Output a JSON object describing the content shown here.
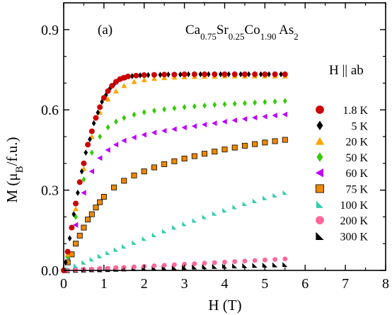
{
  "chart_data": {
    "type": "scatter",
    "panel_label": "(a)",
    "compound": {
      "parts": [
        {
          "t": "Ca",
          "sub": false
        },
        {
          "t": "0.75",
          "sub": true
        },
        {
          "t": "Sr",
          "sub": false
        },
        {
          "t": "0.25",
          "sub": true
        },
        {
          "t": "Co",
          "sub": false
        },
        {
          "t": "1.90",
          "sub": true
        },
        {
          "t": " As",
          "sub": false
        },
        {
          "t": "2",
          "sub": true
        }
      ]
    },
    "field_label": "H || ab",
    "xlabel": "H (T)",
    "ylabel_parts": [
      {
        "t": "M (μ",
        "sub": false
      },
      {
        "t": "B",
        "sub": true
      },
      {
        "t": "/f.u.)",
        "sub": false
      }
    ],
    "xlim": [
      0,
      8
    ],
    "ylim": [
      0,
      1.0
    ],
    "xticks": [
      "0",
      "1",
      "2",
      "3",
      "4",
      "5",
      "6",
      "7",
      "8"
    ],
    "yticks": [
      "0.0",
      "0.3",
      "0.6",
      "0.9"
    ],
    "grid": false,
    "legend_position": "right",
    "series": [
      {
        "name": "1.8 K",
        "marker": "circle",
        "color": "#cc0000",
        "x": [
          0.0,
          0.1,
          0.2,
          0.3,
          0.4,
          0.5,
          0.6,
          0.7,
          0.8,
          0.9,
          1.0,
          1.1,
          1.2,
          1.3,
          1.4,
          1.5,
          1.6,
          1.8,
          2.0,
          2.25,
          2.5,
          2.75,
          3.0,
          3.25,
          3.5,
          3.75,
          4.0,
          4.25,
          4.5,
          4.75,
          5.0,
          5.25,
          5.5
        ],
        "y": [
          0.0,
          0.07,
          0.16,
          0.25,
          0.33,
          0.4,
          0.47,
          0.52,
          0.57,
          0.61,
          0.645,
          0.67,
          0.69,
          0.705,
          0.715,
          0.72,
          0.725,
          0.728,
          0.73,
          0.731,
          0.732,
          0.732,
          0.733,
          0.733,
          0.733,
          0.733,
          0.733,
          0.733,
          0.733,
          0.733,
          0.733,
          0.733,
          0.733
        ]
      },
      {
        "name": "5 K",
        "marker": "diamond",
        "color": "#000000",
        "x": [
          0.05,
          0.15,
          0.25,
          0.35,
          0.45,
          0.55,
          0.65,
          0.75,
          0.85,
          0.95,
          1.05,
          1.15,
          1.25,
          1.35,
          1.45,
          1.55,
          1.7,
          1.9,
          2.1,
          2.4,
          2.6,
          2.9,
          3.1,
          3.4,
          3.6,
          3.9,
          4.1,
          4.4,
          4.6,
          4.9,
          5.1,
          5.4
        ],
        "y": [
          0.03,
          0.12,
          0.21,
          0.29,
          0.37,
          0.44,
          0.49,
          0.55,
          0.59,
          0.63,
          0.655,
          0.68,
          0.695,
          0.71,
          0.718,
          0.722,
          0.726,
          0.729,
          0.73,
          0.731,
          0.732,
          0.732,
          0.733,
          0.733,
          0.733,
          0.733,
          0.733,
          0.733,
          0.733,
          0.733,
          0.733,
          0.733
        ]
      },
      {
        "name": "20 K",
        "marker": "triangle-up",
        "color": "#ffa500",
        "x": [
          0.1,
          0.3,
          0.5,
          0.7,
          0.9,
          1.1,
          1.3,
          1.5,
          1.75,
          2.0,
          2.25,
          2.5,
          2.75,
          3.0,
          3.25,
          3.5,
          3.75,
          4.0,
          4.25,
          4.5,
          4.75,
          5.0,
          5.25,
          5.5
        ],
        "y": [
          0.06,
          0.23,
          0.38,
          0.5,
          0.59,
          0.64,
          0.67,
          0.69,
          0.705,
          0.712,
          0.717,
          0.72,
          0.722,
          0.723,
          0.724,
          0.725,
          0.725,
          0.726,
          0.726,
          0.726,
          0.726,
          0.726,
          0.726,
          0.726
        ]
      },
      {
        "name": "50 K",
        "marker": "diamond",
        "color": "#33cc00",
        "x": [
          0.1,
          0.3,
          0.5,
          0.7,
          0.9,
          1.1,
          1.3,
          1.5,
          1.75,
          2.0,
          2.25,
          2.5,
          2.75,
          3.0,
          3.25,
          3.5,
          3.75,
          4.0,
          4.25,
          4.5,
          4.75,
          5.0,
          5.25,
          5.5
        ],
        "y": [
          0.05,
          0.2,
          0.34,
          0.44,
          0.5,
          0.535,
          0.556,
          0.57,
          0.582,
          0.591,
          0.597,
          0.602,
          0.606,
          0.61,
          0.613,
          0.616,
          0.619,
          0.621,
          0.623,
          0.625,
          0.627,
          0.629,
          0.631,
          0.633
        ]
      },
      {
        "name": "60 K",
        "marker": "triangle-left",
        "color": "#bb00ff",
        "x": [
          0.1,
          0.3,
          0.5,
          0.7,
          0.9,
          1.1,
          1.3,
          1.5,
          1.75,
          2.0,
          2.25,
          2.5,
          2.75,
          3.0,
          3.25,
          3.5,
          3.75,
          4.0,
          4.25,
          4.5,
          4.75,
          5.0,
          5.25,
          5.5
        ],
        "y": [
          0.05,
          0.17,
          0.29,
          0.37,
          0.42,
          0.45,
          0.47,
          0.485,
          0.497,
          0.507,
          0.515,
          0.522,
          0.528,
          0.534,
          0.539,
          0.545,
          0.55,
          0.556,
          0.561,
          0.566,
          0.571,
          0.575,
          0.579,
          0.583
        ]
      },
      {
        "name": "75 K",
        "marker": "square",
        "color": "#ee8800",
        "x": [
          0.1,
          0.2,
          0.3,
          0.4,
          0.5,
          0.6,
          0.7,
          0.8,
          0.9,
          1.0,
          1.25,
          1.5,
          1.75,
          2.0,
          2.25,
          2.5,
          2.75,
          3.0,
          3.25,
          3.5,
          3.75,
          4.0,
          4.25,
          4.5,
          4.75,
          5.0,
          5.25,
          5.5
        ],
        "y": [
          0.03,
          0.06,
          0.1,
          0.13,
          0.16,
          0.19,
          0.21,
          0.235,
          0.255,
          0.275,
          0.31,
          0.335,
          0.355,
          0.37,
          0.385,
          0.397,
          0.408,
          0.418,
          0.427,
          0.436,
          0.444,
          0.452,
          0.459,
          0.466,
          0.472,
          0.478,
          0.483,
          0.488
        ]
      },
      {
        "name": "100 K",
        "marker": "triangle-right",
        "color": "#33ccaa",
        "x": [
          0.1,
          0.3,
          0.5,
          0.7,
          0.9,
          1.1,
          1.3,
          1.5,
          1.75,
          2.0,
          2.25,
          2.5,
          2.75,
          3.0,
          3.25,
          3.5,
          3.75,
          4.0,
          4.25,
          4.5,
          4.75,
          5.0,
          5.25,
          5.5
        ],
        "y": [
          0.006,
          0.018,
          0.03,
          0.042,
          0.054,
          0.066,
          0.078,
          0.09,
          0.104,
          0.119,
          0.133,
          0.147,
          0.161,
          0.174,
          0.187,
          0.2,
          0.213,
          0.225,
          0.237,
          0.249,
          0.26,
          0.271,
          0.281,
          0.291
        ]
      },
      {
        "name": "200 K",
        "marker": "circle",
        "color": "#ff6699",
        "x": [
          0.1,
          0.3,
          0.5,
          0.7,
          0.9,
          1.1,
          1.3,
          1.5,
          1.75,
          2.0,
          2.25,
          2.5,
          2.75,
          3.0,
          3.25,
          3.5,
          3.75,
          4.0,
          4.25,
          4.5,
          4.75,
          5.0,
          5.25,
          5.5
        ],
        "y": [
          0.001,
          0.002,
          0.004,
          0.005,
          0.007,
          0.008,
          0.01,
          0.011,
          0.013,
          0.015,
          0.017,
          0.019,
          0.021,
          0.023,
          0.025,
          0.027,
          0.029,
          0.031,
          0.033,
          0.035,
          0.037,
          0.039,
          0.041,
          0.043
        ]
      },
      {
        "name": "300 K",
        "marker": "triangle-half",
        "color": "#000000",
        "x": [
          0.1,
          0.3,
          0.5,
          0.7,
          0.9,
          1.1,
          1.3,
          1.5,
          1.75,
          2.0,
          2.25,
          2.5,
          2.75,
          3.0,
          3.25,
          3.5,
          3.75,
          4.0,
          4.25,
          4.5,
          4.75,
          5.0,
          5.25,
          5.5
        ],
        "y": [
          0.0,
          0.001,
          0.002,
          0.003,
          0.003,
          0.004,
          0.005,
          0.006,
          0.007,
          0.008,
          0.009,
          0.01,
          0.011,
          0.012,
          0.013,
          0.014,
          0.015,
          0.016,
          0.017,
          0.018,
          0.019,
          0.02,
          0.021,
          0.022
        ]
      }
    ]
  }
}
